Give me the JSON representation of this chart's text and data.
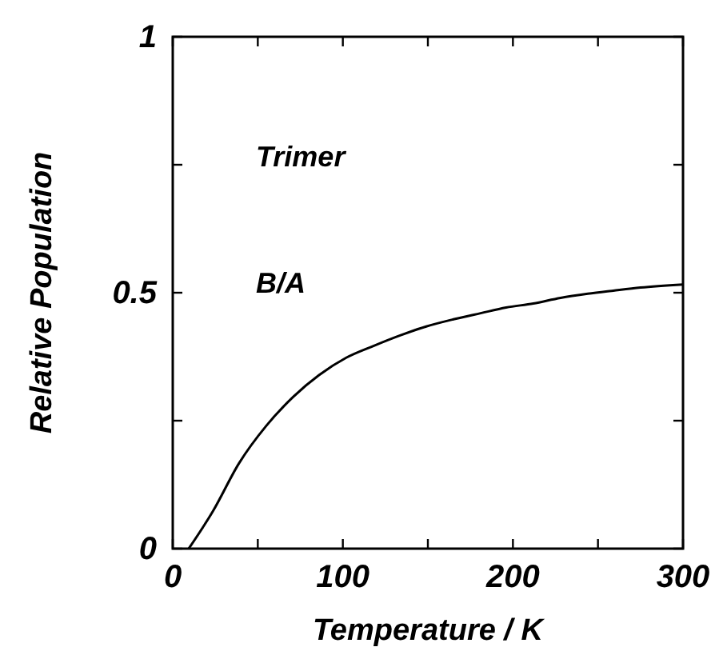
{
  "chart_data": {
    "type": "line",
    "xlabel": "Temperature / K",
    "ylabel": "Relative Population",
    "annotations": [
      "Trimer",
      "B/A"
    ],
    "x": [
      9.4,
      23.6,
      39,
      55,
      71,
      86,
      102,
      118,
      134,
      149,
      165,
      181,
      196,
      212,
      228,
      244,
      259,
      275,
      300
    ],
    "series": [
      {
        "color": "#000000",
        "values": [
          0,
          0.073,
          0.167,
          0.24,
          0.297,
          0.339,
          0.373,
          0.396,
          0.417,
          0.434,
          0.448,
          0.46,
          0.471,
          0.479,
          0.49,
          0.498,
          0.504,
          0.51,
          0.516
        ]
      }
    ],
    "xlim": [
      0,
      300
    ],
    "ylim": [
      0,
      1
    ],
    "xticks": [
      0,
      {
        "value": 50,
        "label": null
      },
      100,
      {
        "value": 150,
        "label": null
      },
      200,
      {
        "value": 250,
        "label": null
      },
      300
    ],
    "yticks": [
      0,
      {
        "value": 0.25,
        "label": null
      },
      {
        "value": 0.5,
        "label": "0.5"
      },
      {
        "value": 0.75,
        "label": null
      },
      1
    ],
    "grid": false,
    "marker": "none",
    "line_style": "solid"
  }
}
